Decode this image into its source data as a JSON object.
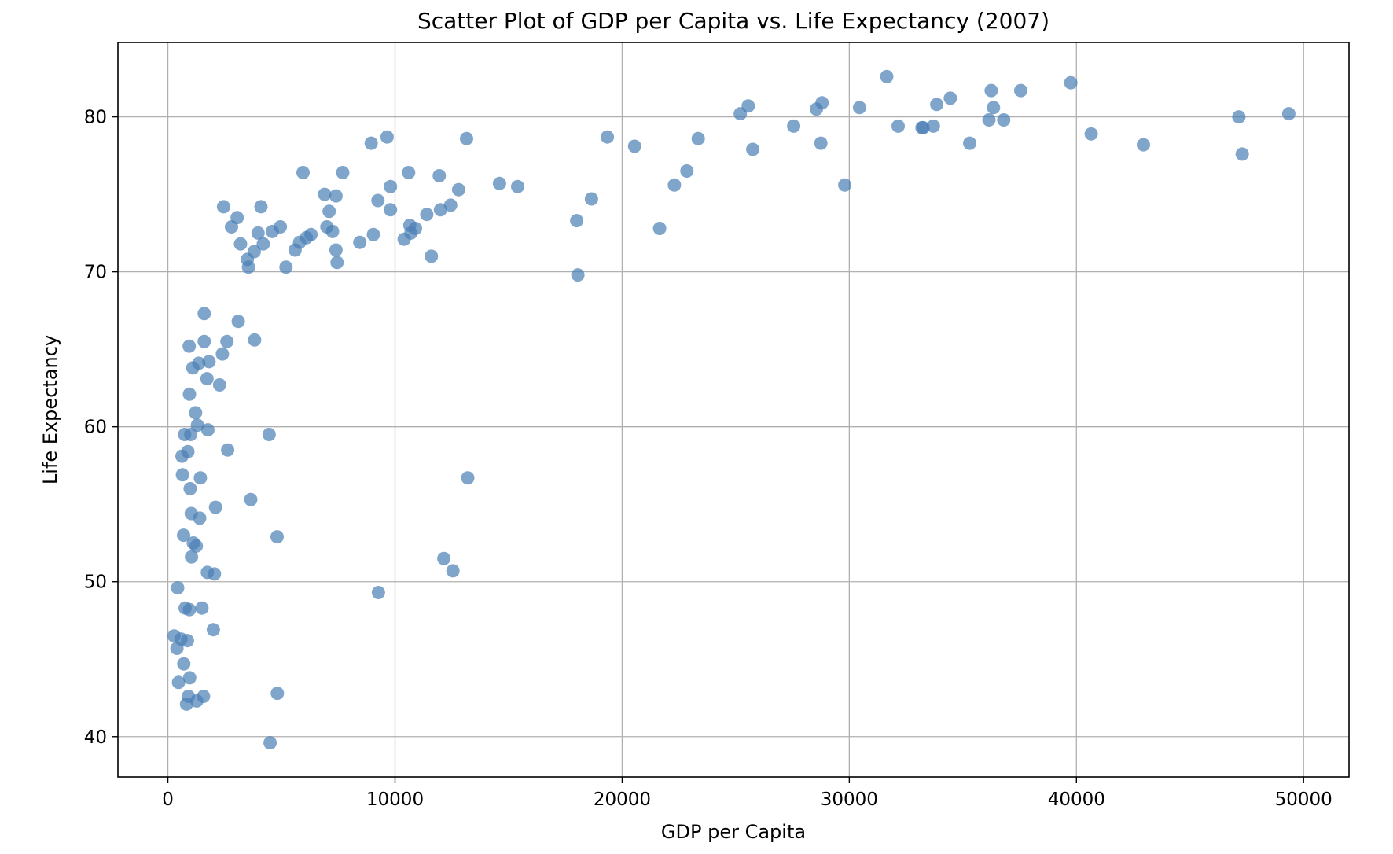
{
  "chart_data": {
    "type": "scatter",
    "title": "Scatter Plot of GDP per Capita vs. Life Expectancy (2007)",
    "xlabel": "GDP per Capita",
    "ylabel": "Life Expectancy",
    "xlim": [
      -2200,
      52000
    ],
    "ylim": [
      37.4,
      84.8
    ],
    "xticks": [
      0,
      10000,
      20000,
      30000,
      40000,
      50000
    ],
    "yticks": [
      40,
      50,
      60,
      70,
      80
    ],
    "xtick_labels": [
      "0",
      "10000",
      "20000",
      "30000",
      "40000",
      "50000"
    ],
    "ytick_labels": [
      "40",
      "50",
      "60",
      "70",
      "80"
    ],
    "grid": true,
    "marker_color": "#4a7fb5",
    "marker_opacity": 0.7,
    "points": [
      [
        275,
        46.5
      ],
      [
        400,
        45.7
      ],
      [
        470,
        43.5
      ],
      [
        430,
        49.6
      ],
      [
        580,
        46.3
      ],
      [
        620,
        58.1
      ],
      [
        640,
        56.9
      ],
      [
        690,
        53.0
      ],
      [
        700,
        44.7
      ],
      [
        740,
        59.5
      ],
      [
        760,
        48.3
      ],
      [
        820,
        42.1
      ],
      [
        860,
        46.2
      ],
      [
        880,
        58.4
      ],
      [
        900,
        42.6
      ],
      [
        940,
        65.2
      ],
      [
        950,
        62.1
      ],
      [
        950,
        48.2
      ],
      [
        960,
        43.8
      ],
      [
        980,
        56.0
      ],
      [
        1000,
        59.5
      ],
      [
        1030,
        54.4
      ],
      [
        1040,
        51.6
      ],
      [
        1100,
        63.8
      ],
      [
        1120,
        52.5
      ],
      [
        1220,
        60.9
      ],
      [
        1250,
        52.3
      ],
      [
        1270,
        42.3
      ],
      [
        1300,
        60.1
      ],
      [
        1360,
        64.1
      ],
      [
        1400,
        54.1
      ],
      [
        1430,
        56.7
      ],
      [
        1500,
        48.3
      ],
      [
        1570,
        42.6
      ],
      [
        1600,
        67.3
      ],
      [
        1600,
        65.5
      ],
      [
        1720,
        63.1
      ],
      [
        1740,
        50.6
      ],
      [
        1760,
        59.8
      ],
      [
        1810,
        64.2
      ],
      [
        2000,
        46.9
      ],
      [
        2050,
        50.5
      ],
      [
        2100,
        54.8
      ],
      [
        2280,
        62.7
      ],
      [
        2400,
        64.7
      ],
      [
        2450,
        74.2
      ],
      [
        2600,
        65.5
      ],
      [
        2630,
        58.5
      ],
      [
        2800,
        72.9
      ],
      [
        3050,
        73.5
      ],
      [
        3100,
        66.8
      ],
      [
        3200,
        71.8
      ],
      [
        3500,
        70.8
      ],
      [
        3550,
        70.3
      ],
      [
        3650,
        55.3
      ],
      [
        3800,
        71.3
      ],
      [
        3820,
        65.6
      ],
      [
        3970,
        72.5
      ],
      [
        4100,
        74.2
      ],
      [
        4200,
        71.8
      ],
      [
        4460,
        59.5
      ],
      [
        4500,
        39.6
      ],
      [
        4600,
        72.6
      ],
      [
        4810,
        52.9
      ],
      [
        4820,
        42.8
      ],
      [
        4950,
        72.9
      ],
      [
        5200,
        70.3
      ],
      [
        5600,
        71.4
      ],
      [
        5800,
        71.9
      ],
      [
        5950,
        76.4
      ],
      [
        6100,
        72.2
      ],
      [
        6300,
        72.4
      ],
      [
        6900,
        75.0
      ],
      [
        7000,
        72.9
      ],
      [
        7100,
        73.9
      ],
      [
        7250,
        72.6
      ],
      [
        7400,
        71.4
      ],
      [
        7400,
        74.9
      ],
      [
        7450,
        70.6
      ],
      [
        7700,
        76.4
      ],
      [
        8450,
        71.9
      ],
      [
        8950,
        78.3
      ],
      [
        9050,
        72.4
      ],
      [
        9250,
        74.6
      ],
      [
        9270,
        49.3
      ],
      [
        9650,
        78.7
      ],
      [
        9800,
        74.0
      ],
      [
        9800,
        75.5
      ],
      [
        10400,
        72.1
      ],
      [
        10600,
        76.4
      ],
      [
        10650,
        73.0
      ],
      [
        10700,
        72.5
      ],
      [
        10900,
        72.8
      ],
      [
        11400,
        73.7
      ],
      [
        11600,
        71.0
      ],
      [
        11950,
        76.2
      ],
      [
        12000,
        74.0
      ],
      [
        12150,
        51.5
      ],
      [
        12450,
        74.3
      ],
      [
        12550,
        50.7
      ],
      [
        12800,
        75.3
      ],
      [
        13150,
        78.6
      ],
      [
        13200,
        56.7
      ],
      [
        14600,
        75.7
      ],
      [
        15400,
        75.5
      ],
      [
        18000,
        73.3
      ],
      [
        18050,
        69.8
      ],
      [
        18650,
        74.7
      ],
      [
        19350,
        78.7
      ],
      [
        20550,
        78.1
      ],
      [
        21650,
        72.8
      ],
      [
        22300,
        75.6
      ],
      [
        22850,
        76.5
      ],
      [
        23350,
        78.6
      ],
      [
        25200,
        80.2
      ],
      [
        25550,
        80.7
      ],
      [
        25750,
        77.9
      ],
      [
        27550,
        79.4
      ],
      [
        28550,
        80.5
      ],
      [
        28750,
        78.3
      ],
      [
        28800,
        80.9
      ],
      [
        29800,
        75.6
      ],
      [
        30450,
        80.6
      ],
      [
        31650,
        82.6
      ],
      [
        32150,
        79.4
      ],
      [
        33200,
        79.3
      ],
      [
        33250,
        79.3
      ],
      [
        33700,
        79.4
      ],
      [
        33850,
        80.8
      ],
      [
        34450,
        81.2
      ],
      [
        35300,
        78.3
      ],
      [
        36150,
        79.8
      ],
      [
        36250,
        81.7
      ],
      [
        36350,
        80.6
      ],
      [
        36800,
        79.8
      ],
      [
        37550,
        81.7
      ],
      [
        39750,
        82.2
      ],
      [
        40650,
        78.9
      ],
      [
        42950,
        78.2
      ],
      [
        47150,
        80.0
      ],
      [
        47300,
        77.6
      ],
      [
        49350,
        80.2
      ]
    ]
  }
}
